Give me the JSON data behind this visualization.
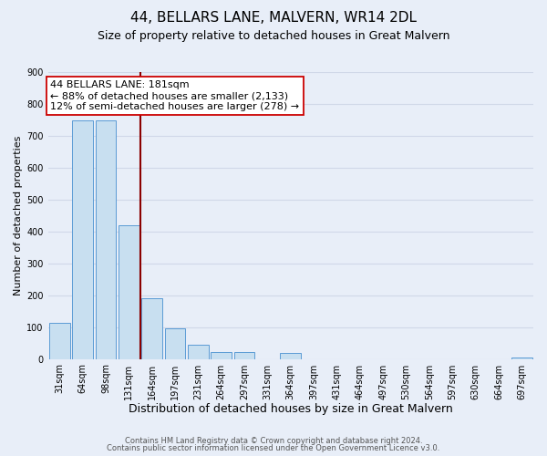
{
  "title": "44, BELLARS LANE, MALVERN, WR14 2DL",
  "subtitle": "Size of property relative to detached houses in Great Malvern",
  "xlabel": "Distribution of detached houses by size in Great Malvern",
  "ylabel": "Number of detached properties",
  "bar_labels": [
    "31sqm",
    "64sqm",
    "98sqm",
    "131sqm",
    "164sqm",
    "197sqm",
    "231sqm",
    "264sqm",
    "297sqm",
    "331sqm",
    "364sqm",
    "397sqm",
    "431sqm",
    "464sqm",
    "497sqm",
    "530sqm",
    "564sqm",
    "597sqm",
    "630sqm",
    "664sqm",
    "697sqm"
  ],
  "bar_values": [
    113,
    748,
    748,
    420,
    190,
    95,
    45,
    22,
    22,
    0,
    20,
    0,
    0,
    0,
    0,
    0,
    0,
    0,
    0,
    0,
    5
  ],
  "bar_color": "#c8dff0",
  "bar_edge_color": "#5b9bd5",
  "grid_color": "#d0d8e8",
  "background_color": "#e8eef8",
  "vline_color": "#8b0000",
  "annotation_line1": "44 BELLARS LANE: 181sqm",
  "annotation_line2": "← 88% of detached houses are smaller (2,133)",
  "annotation_line3": "12% of semi-detached houses are larger (278) →",
  "ylim": [
    0,
    900
  ],
  "yticks": [
    0,
    100,
    200,
    300,
    400,
    500,
    600,
    700,
    800,
    900
  ],
  "footer_line1": "Contains HM Land Registry data © Crown copyright and database right 2024.",
  "footer_line2": "Contains public sector information licensed under the Open Government Licence v3.0.",
  "title_fontsize": 11,
  "subtitle_fontsize": 9,
  "xlabel_fontsize": 9,
  "ylabel_fontsize": 8,
  "tick_fontsize": 7,
  "annotation_fontsize": 8,
  "footer_fontsize": 6
}
